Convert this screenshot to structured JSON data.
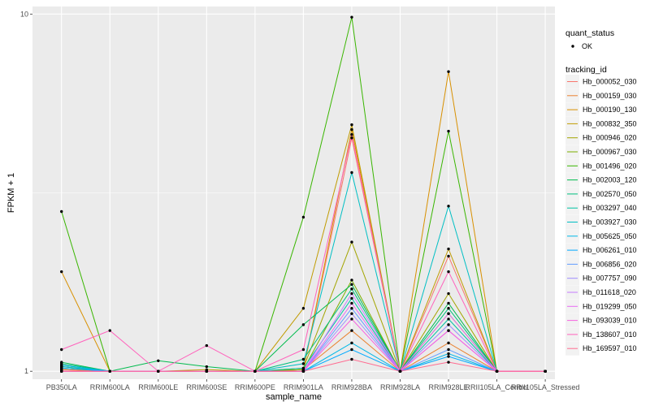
{
  "chart_data": {
    "type": "line",
    "title": "",
    "xlabel": "sample_name",
    "ylabel": "FPKM + 1",
    "y_scale": "log10",
    "ylim": [
      0.95,
      10.5
    ],
    "y_ticks": [
      {
        "value": 1,
        "label": "1"
      },
      {
        "value": 10,
        "label": "10"
      }
    ],
    "categories": [
      "PB350LA",
      "RRIM600LA",
      "RRIM600LE",
      "RRIM600SE",
      "RRIM600PE",
      "RRIM901LA",
      "RRIM928BA",
      "RRIM928LA",
      "RRIM928LE",
      "RRII105LA_Control",
      "RRII105LA_Stressed"
    ],
    "point_color": "#000000",
    "panel_background": "#ebebeb",
    "grid_color": "#ffffff",
    "legend": {
      "status_title": "quant_status",
      "status_entries": [
        "OK"
      ],
      "series_title": "tracking_id"
    },
    "series": [
      {
        "name": "Hb_000052_030",
        "color": "#F8766D",
        "values": [
          1.01,
          1.0,
          1.0,
          1.0,
          1.0,
          1.01,
          4.5,
          1.0,
          2.1,
          1.0,
          1.0
        ]
      },
      {
        "name": "Hb_000159_030",
        "color": "#EA8331",
        "values": [
          1.01,
          1.0,
          1.0,
          1.0,
          1.0,
          1.01,
          1.3,
          1.0,
          1.2,
          1.0,
          1.0
        ]
      },
      {
        "name": "Hb_000190_130",
        "color": "#D89000",
        "values": [
          1.9,
          1.0,
          1.0,
          1.0,
          1.0,
          1.01,
          4.75,
          1.0,
          6.9,
          1.0,
          1.0
        ]
      },
      {
        "name": "Hb_000832_350",
        "color": "#C09B00",
        "values": [
          1.02,
          1.0,
          1.0,
          1.01,
          1.0,
          1.5,
          4.9,
          1.0,
          2.2,
          1.0,
          1.0
        ]
      },
      {
        "name": "Hb_000946_020",
        "color": "#A3A500",
        "values": [
          1.03,
          1.0,
          1.0,
          1.0,
          1.0,
          1.02,
          2.3,
          1.0,
          1.65,
          1.0,
          1.0
        ]
      },
      {
        "name": "Hb_000967_030",
        "color": "#7CAE00",
        "values": [
          1.02,
          1.0,
          1.0,
          1.0,
          1.0,
          1.01,
          1.8,
          1.0,
          1.45,
          1.0,
          1.0
        ]
      },
      {
        "name": "Hb_001496_020",
        "color": "#39B600",
        "values": [
          2.8,
          1.0,
          1.0,
          1.0,
          1.0,
          2.7,
          9.8,
          1.0,
          4.7,
          1.0,
          1.0
        ]
      },
      {
        "name": "Hb_002003_120",
        "color": "#00BB4E",
        "values": [
          1.06,
          1.0,
          1.07,
          1.03,
          1.0,
          1.35,
          1.75,
          1.0,
          1.55,
          1.0,
          1.0
        ]
      },
      {
        "name": "Hb_002570_050",
        "color": "#00BF7D",
        "values": [
          1.05,
          1.0,
          1.0,
          1.0,
          1.0,
          1.08,
          1.7,
          1.0,
          1.5,
          1.0,
          1.0
        ]
      },
      {
        "name": "Hb_003297_040",
        "color": "#00C1A3",
        "values": [
          1.04,
          1.0,
          1.0,
          1.0,
          1.0,
          1.02,
          1.6,
          1.0,
          1.4,
          1.0,
          1.0
        ]
      },
      {
        "name": "Hb_003927_030",
        "color": "#00BFC4",
        "values": [
          1.03,
          1.0,
          1.0,
          1.0,
          1.0,
          1.05,
          3.6,
          1.0,
          2.9,
          1.0,
          1.0
        ]
      },
      {
        "name": "Hb_005625_050",
        "color": "#00B8E7",
        "values": [
          1.04,
          1.0,
          1.0,
          1.0,
          1.0,
          1.0,
          1.2,
          1.0,
          1.12,
          1.0,
          1.0
        ]
      },
      {
        "name": "Hb_006261_010",
        "color": "#00A9FF",
        "values": [
          1.02,
          1.0,
          1.0,
          1.0,
          1.0,
          1.0,
          1.15,
          1.0,
          1.1,
          1.0,
          1.0
        ]
      },
      {
        "name": "Hb_006856_020",
        "color": "#619CFF",
        "values": [
          1.0,
          1.0,
          1.0,
          1.0,
          1.0,
          1.0,
          1.5,
          1.0,
          1.15,
          1.0,
          1.0
        ]
      },
      {
        "name": "Hb_007757_090",
        "color": "#9F8CFF",
        "values": [
          1.0,
          1.0,
          1.0,
          1.0,
          1.0,
          1.0,
          1.45,
          1.0,
          1.35,
          1.0,
          1.0
        ]
      },
      {
        "name": "Hb_011618_020",
        "color": "#C77CFF",
        "values": [
          1.0,
          1.0,
          1.0,
          1.0,
          1.0,
          1.0,
          1.65,
          1.0,
          1.3,
          1.0,
          1.0
        ]
      },
      {
        "name": "Hb_019299_050",
        "color": "#E76BF3",
        "values": [
          1.0,
          1.0,
          1.0,
          1.0,
          1.0,
          1.0,
          1.55,
          1.0,
          1.45,
          1.0,
          1.0
        ]
      },
      {
        "name": "Hb_093039_010",
        "color": "#F763E0",
        "values": [
          1.0,
          1.0,
          1.0,
          1.0,
          1.0,
          1.0,
          1.4,
          1.0,
          1.3,
          1.0,
          1.0
        ]
      },
      {
        "name": "Hb_138607_010",
        "color": "#FF62BC",
        "values": [
          1.15,
          1.3,
          1.0,
          1.18,
          1.0,
          1.15,
          4.6,
          1.0,
          1.9,
          1.0,
          1.0
        ]
      },
      {
        "name": "Hb_169597_010",
        "color": "#FF6C91",
        "values": [
          1.0,
          1.0,
          1.0,
          1.0,
          1.0,
          1.0,
          1.08,
          1.0,
          1.06,
          1.0,
          1.0
        ]
      }
    ]
  }
}
